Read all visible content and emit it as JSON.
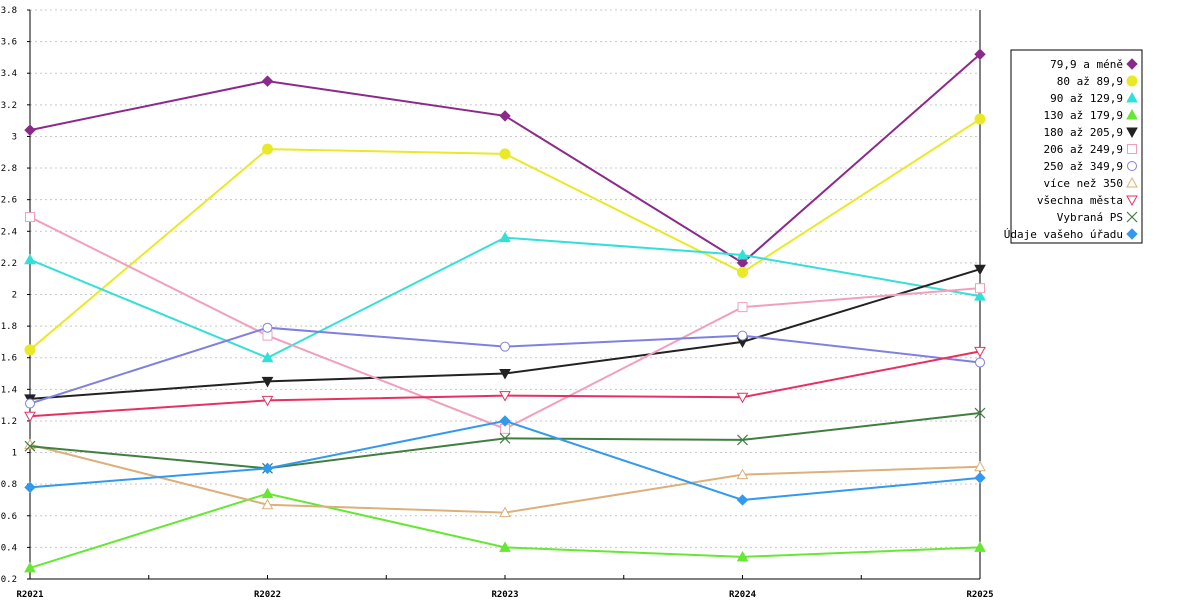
{
  "chart_data": {
    "type": "line",
    "title": "",
    "xlabel": "",
    "ylabel": "",
    "categories": [
      "R2021",
      "R2022",
      "R2023",
      "R2024",
      "R2025"
    ],
    "ylim": [
      0.2,
      3.8
    ],
    "yticks": [
      "0.2",
      "0.4",
      "0.6",
      "0.8",
      "1",
      "1.2",
      "1.4",
      "1.6",
      "1.8",
      "2",
      "2.2",
      "2.4",
      "2.6",
      "2.8",
      "3",
      "3.2",
      "3.4",
      "3.6",
      "3.8"
    ],
    "grid": "horizontal dashed",
    "legend_position": "right",
    "series": [
      {
        "name": "79,9 a méně",
        "color": "#8b2a8b",
        "marker": "diamond",
        "values": [
          3.04,
          3.35,
          3.13,
          2.2,
          3.52
        ]
      },
      {
        "name": "80 až 89,9",
        "color": "#e9e928",
        "marker": "circle",
        "values": [
          1.65,
          2.92,
          2.89,
          2.14,
          3.11
        ]
      },
      {
        "name": "90 až 129,9",
        "color": "#33e0d8",
        "marker": "triangle",
        "values": [
          2.22,
          1.6,
          2.36,
          2.25,
          1.99
        ]
      },
      {
        "name": "130 až 179,9",
        "color": "#66e833",
        "marker": "triangle",
        "values": [
          0.27,
          0.74,
          0.4,
          0.34,
          0.4
        ]
      },
      {
        "name": "180 až 205,9",
        "color": "#222222",
        "marker": "triangle-down",
        "values": [
          1.34,
          1.45,
          1.5,
          1.7,
          2.16
        ]
      },
      {
        "name": "206 až 249,9",
        "color": "#f0a0bc",
        "marker": "square-open",
        "values": [
          2.49,
          1.74,
          1.15,
          1.92,
          2.04
        ]
      },
      {
        "name": "250 až 349,9",
        "color": "#8080e0",
        "marker": "circle-open",
        "values": [
          1.31,
          1.79,
          1.67,
          1.74,
          1.57
        ]
      },
      {
        "name": "více než 350",
        "color": "#dcb07a",
        "marker": "triangle-open",
        "values": [
          1.05,
          0.67,
          0.62,
          0.86,
          0.91
        ]
      },
      {
        "name": "všechna města",
        "color": "#e83060",
        "marker": "triangle-down-open",
        "values": [
          1.23,
          1.33,
          1.36,
          1.35,
          1.64
        ]
      },
      {
        "name": "Vybraná PS",
        "color": "#3f7f3f",
        "marker": "x",
        "values": [
          1.04,
          0.9,
          1.09,
          1.08,
          1.25
        ]
      },
      {
        "name": "Údaje vašeho úřadu",
        "color": "#3399ee",
        "marker": "diamond",
        "values": [
          0.78,
          0.9,
          1.2,
          0.7,
          0.84
        ]
      }
    ]
  }
}
